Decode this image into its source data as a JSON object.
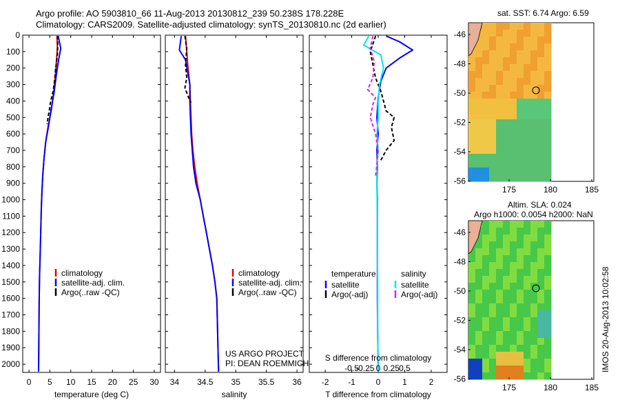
{
  "header": {
    "title_line1": "Argo profile: AO 5903810_66 11-Aug-2013 20130812_239 50.238S 178.228E",
    "title_line2": "Climatology: CARS2009. Satellite-adjusted climatology: synTS_20130810.nc (2d earlier)"
  },
  "colors": {
    "climatology": "#e00000",
    "satellite": "#0000ff",
    "argo": "#000000",
    "salinity_sat": "#00e5ee",
    "salinity_argo": "#e020e0"
  },
  "depth_axis": {
    "range": [
      0,
      2050
    ],
    "ticks": [
      0,
      100,
      200,
      300,
      400,
      500,
      600,
      700,
      800,
      900,
      1000,
      1100,
      1200,
      1300,
      1400,
      1500,
      1600,
      1700,
      1800,
      1900,
      2000
    ]
  },
  "chart_data": [
    {
      "type": "line",
      "id": "temperature",
      "xlabel": "temperature (deg C)",
      "xlim": [
        -1.5,
        31.5
      ],
      "ylim": [
        2050,
        0
      ],
      "xticks": [
        0,
        5,
        10,
        15,
        20,
        25,
        30
      ],
      "legend": [
        "climatology",
        "satellite-adj. clim.",
        "Argo(..raw -QC)"
      ],
      "series": [
        {
          "name": "climatology",
          "color": "#e00000",
          "dash": false,
          "x": [
            6.7,
            6.8,
            6.6,
            6.3,
            5.9,
            5.4,
            4.6,
            4.0,
            3.6,
            3.3,
            3.1,
            2.95,
            2.85,
            2.75,
            2.65,
            2.55,
            2.45,
            2.4,
            2.35,
            2.3
          ],
          "y": [
            5,
            75,
            150,
            250,
            350,
            450,
            550,
            650,
            750,
            850,
            950,
            1050,
            1150,
            1250,
            1350,
            1450,
            1600,
            1750,
            1900,
            2045
          ]
        },
        {
          "name": "satellite-adj. clim.",
          "color": "#0000ff",
          "dash": false,
          "x": [
            7.0,
            7.6,
            7.1,
            6.5,
            6.0,
            5.3,
            4.7,
            4.0,
            3.6,
            3.3,
            3.1,
            2.95,
            2.85,
            2.75,
            2.65,
            2.55,
            2.45,
            2.4,
            2.35,
            2.3
          ],
          "y": [
            5,
            80,
            150,
            250,
            350,
            450,
            550,
            650,
            750,
            850,
            950,
            1050,
            1150,
            1250,
            1350,
            1450,
            1600,
            1750,
            1900,
            2045
          ]
        },
        {
          "name": "Argo(..raw -QC)",
          "color": "#000000",
          "dash": true,
          "x": [
            6.8,
            6.9,
            6.8,
            6.4,
            6.1,
            5.8,
            5.2,
            4.9,
            4.3
          ],
          "y": [
            5,
            60,
            120,
            200,
            280,
            340,
            400,
            450,
            540
          ]
        }
      ]
    },
    {
      "type": "line",
      "id": "salinity",
      "xlabel": "salinity",
      "xlim": [
        33.85,
        36.1
      ],
      "ylim": [
        2050,
        0
      ],
      "xticks": [
        34,
        34.5,
        35,
        35.5,
        36
      ],
      "xtick_labels": [
        "34",
        "34.5",
        "35",
        "35.5",
        "36"
      ],
      "legend": [
        "climatology",
        "satellite-adj. clim.",
        "Argo(..raw -QC)"
      ],
      "annotation": [
        "US ARGO PROJECT",
        "PI: DEAN ROEMMICH"
      ],
      "series": [
        {
          "name": "climatology",
          "color": "#e00000",
          "dash": false,
          "x": [
            34.18,
            34.2,
            34.22,
            34.25,
            34.26,
            34.27,
            34.28,
            34.3,
            34.33,
            34.37,
            34.42,
            34.47,
            34.52,
            34.57,
            34.62,
            34.66,
            34.69,
            34.7,
            34.71,
            34.72
          ],
          "y": [
            5,
            100,
            200,
            300,
            400,
            500,
            600,
            700,
            800,
            900,
            1000,
            1100,
            1200,
            1300,
            1400,
            1500,
            1600,
            1750,
            1900,
            2045
          ]
        },
        {
          "name": "satellite-adj. clim.",
          "color": "#0000ff",
          "dash": false,
          "x": [
            34.11,
            34.08,
            34.18,
            34.25,
            34.25,
            34.26,
            34.27,
            34.29,
            34.31,
            34.35,
            34.42,
            34.47,
            34.52,
            34.57,
            34.62,
            34.66,
            34.69,
            34.7,
            34.71,
            34.72
          ],
          "y": [
            5,
            90,
            150,
            300,
            400,
            500,
            600,
            700,
            800,
            900,
            1000,
            1100,
            1200,
            1300,
            1400,
            1500,
            1600,
            1750,
            1900,
            2045
          ]
        },
        {
          "name": "Argo(..raw -QC)",
          "color": "#000000",
          "dash": true,
          "x": [
            34.17,
            34.2,
            34.18,
            34.2,
            34.17,
            34.23,
            34.27
          ],
          "y": [
            5,
            80,
            180,
            260,
            320,
            380,
            410
          ]
        }
      ]
    },
    {
      "type": "line",
      "id": "difference",
      "xlabel": "T difference from climatology",
      "xlabel_top": "S difference from climatology",
      "xlim": [
        -2.6,
        2.6
      ],
      "ylim": [
        2050,
        0
      ],
      "xticks": [
        -2,
        -1,
        0,
        1,
        2
      ],
      "s_ticks": [
        -0.5,
        -0.25,
        0,
        0.25,
        0.5
      ],
      "s_tick_labels": [
        "-0.5",
        "-0.25",
        "0",
        "0.25",
        "0.5"
      ],
      "legend_headers": [
        "temperature",
        "salinity"
      ],
      "legend": [
        "satellite",
        "Argo(-adj)",
        "satellite",
        "Argo(-adj)"
      ],
      "series": [
        {
          "name": "temperature satellite",
          "color": "#0000ff",
          "dash": false,
          "x": [
            0.3,
            0.8,
            1.3,
            0.8,
            0.3,
            0.1,
            0.0,
            -0.05,
            0.0,
            -0.05,
            -0.03,
            -0.05,
            -0.03,
            -0.03,
            -0.03,
            -0.03,
            -0.02,
            0
          ],
          "y": [
            5,
            40,
            90,
            140,
            200,
            280,
            380,
            500,
            600,
            700,
            800,
            900,
            1000,
            1200,
            1400,
            1600,
            1800,
            2045
          ]
        },
        {
          "name": "temperature Argo(-adj)",
          "color": "#000000",
          "dash": true,
          "x": [
            -0.1,
            -0.3,
            -0.2,
            -0.1,
            0.1,
            0.2,
            0.3,
            0.6,
            0.5,
            0.6,
            0.3,
            0.1
          ],
          "y": [
            5,
            100,
            180,
            260,
            340,
            400,
            460,
            500,
            560,
            640,
            700,
            760
          ]
        },
        {
          "name": "salinity satellite",
          "color": "#00e5ee",
          "dash": false,
          "x": [
            -0.35,
            -0.55,
            0.1,
            0.2,
            0.05,
            0.0,
            0.0,
            -0.05,
            0.0,
            -0.05,
            -0.05,
            -0.03,
            -0.03,
            -0.02,
            -0.02,
            0
          ],
          "y": [
            5,
            60,
            120,
            200,
            300,
            400,
            500,
            600,
            700,
            800,
            900,
            1100,
            1300,
            1500,
            1800,
            2045
          ]
        },
        {
          "name": "salinity Argo(-adj)",
          "color": "#e020e0",
          "dash": true,
          "x": [
            -0.2,
            -0.3,
            -0.15,
            -0.2,
            -0.4,
            -0.1,
            -0.2,
            -0.3,
            -0.1,
            0.0,
            -0.05,
            -0.1
          ],
          "y": [
            5,
            80,
            160,
            260,
            330,
            380,
            420,
            500,
            600,
            700,
            780,
            860
          ]
        }
      ]
    }
  ],
  "maps": {
    "top": {
      "title": "sat. SST: 6.74  Argo: 6.59",
      "yticks": [
        "-46",
        "-48",
        "-50",
        "-52",
        "-54",
        "-56"
      ],
      "xticks": [
        "175",
        "180",
        "185"
      ]
    },
    "bottom": {
      "title_line1": "Altim. SLA: 0.024",
      "title_line2": "Argo h1000: 0.0054 h2000: NaN",
      "yticks": [
        "-46",
        "-48",
        "-50",
        "-52",
        "-54",
        "-56"
      ],
      "xticks": [
        "175",
        "180",
        "185"
      ]
    }
  },
  "stamp": "IMOS 20-Aug-2013 10:02:58"
}
